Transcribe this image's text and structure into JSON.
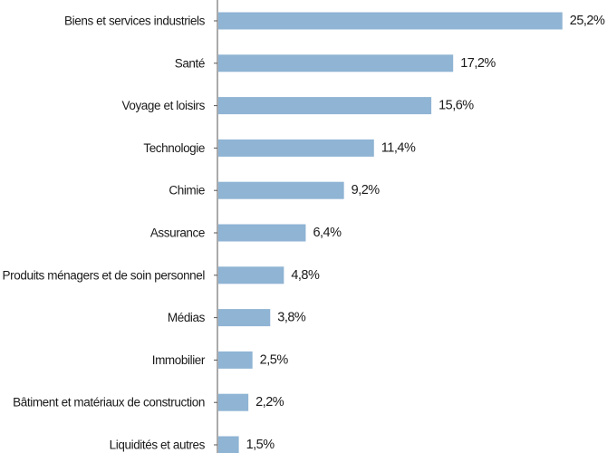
{
  "chart_data": {
    "type": "bar",
    "orientation": "horizontal",
    "title": "",
    "xlabel": "",
    "ylabel": "",
    "unit": "%",
    "grid": false,
    "legend": "none",
    "bar_color": "#8fb4d4",
    "axis_color": "#555555",
    "categories": [
      "Biens et services industriels",
      "Santé",
      "Voyage et loisirs",
      "Technologie",
      "Chimie",
      "Assurance",
      "Produits ménagers et de soin personnel",
      "Médias",
      "Immobilier",
      "Bâtiment et matériaux de construction",
      "Liquidités et autres"
    ],
    "values": [
      25.2,
      17.2,
      15.6,
      11.4,
      9.2,
      6.4,
      4.8,
      3.8,
      2.5,
      2.2,
      1.5
    ],
    "value_labels": [
      "25,2%",
      "17,2%",
      "15,6%",
      "11,4%",
      "9,2%",
      "6,4%",
      "4,8%",
      "3,8%",
      "2,5%",
      "2,2%",
      "1,5%"
    ]
  }
}
